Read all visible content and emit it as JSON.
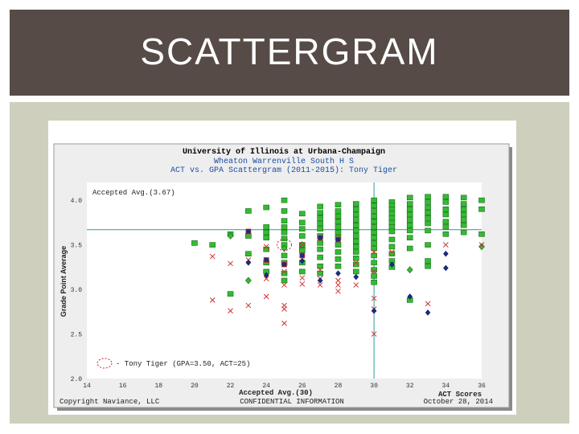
{
  "slide": {
    "title": "SCATTERGRAM"
  },
  "chart_data": {
    "type": "scatter",
    "title": "University of Illinois at Urbana-Champaign",
    "subtitle": "Wheaton Warrenville South H S",
    "subtitle2": "ACT vs. GPA Scattergram (2011-2015): Tony Tiger",
    "xlabel": "Accepted Avg.(30)",
    "xlabel_right": "ACT Scores",
    "ylabel": "Grade Point Average",
    "accepted_gpa_label": "Accepted Avg.(3.67)",
    "legend_text": "- Tony Tiger (GPA=3.50, ACT=25)",
    "footer_left": "Copyright Naviance, LLC",
    "footer_center": "CONFIDENTIAL INFORMATION",
    "footer_right": "October 28, 2014",
    "x_ticks": [
      "14",
      "16",
      "18",
      "20",
      "22",
      "24",
      "26",
      "28",
      "30",
      "32",
      "34",
      "36"
    ],
    "y_ticks": [
      "4.0",
      "3.5",
      "3.0",
      "2.5",
      "2.0"
    ],
    "xlim": [
      14,
      36
    ],
    "ylim": [
      2.0,
      4.2
    ],
    "grid": false,
    "accepted_avg": {
      "act": 30,
      "gpa": 3.67
    },
    "student": {
      "name": "Tony Tiger",
      "act": 25,
      "gpa": 3.5
    },
    "colors": {
      "accepted": "#33bb33",
      "denied": "#cc3333",
      "waitlist": "#1a2a88",
      "title": "#000000",
      "subtitle": "#1a4fa0",
      "ref_line": "#2a9a9a",
      "plot_bg": "#ffffff"
    },
    "series": [
      {
        "marker": "accepted-square",
        "points": [
          [
            20,
            3.52
          ],
          [
            21,
            3.5
          ],
          [
            22,
            3.62
          ],
          [
            22,
            2.95
          ],
          [
            23,
            3.88
          ],
          [
            23,
            3.6
          ],
          [
            23,
            3.4
          ],
          [
            24,
            3.92
          ],
          [
            24,
            3.7
          ],
          [
            24,
            3.64
          ],
          [
            24,
            3.58
          ],
          [
            24,
            3.45
          ],
          [
            24,
            3.3
          ],
          [
            24,
            3.2
          ],
          [
            25,
            4.0
          ],
          [
            25,
            3.88
          ],
          [
            25,
            3.77
          ],
          [
            25,
            3.7
          ],
          [
            25,
            3.64
          ],
          [
            25,
            3.57
          ],
          [
            25,
            3.5
          ],
          [
            25,
            3.38
          ],
          [
            25,
            3.3
          ],
          [
            25,
            3.18
          ],
          [
            25,
            3.1
          ],
          [
            26,
            3.85
          ],
          [
            26,
            3.75
          ],
          [
            26,
            3.68
          ],
          [
            26,
            3.6
          ],
          [
            26,
            3.5
          ],
          [
            26,
            3.44
          ],
          [
            26,
            3.3
          ],
          [
            26,
            3.2
          ],
          [
            27,
            3.93
          ],
          [
            27,
            3.86
          ],
          [
            27,
            3.8
          ],
          [
            27,
            3.74
          ],
          [
            27,
            3.68
          ],
          [
            27,
            3.6
          ],
          [
            27,
            3.52
          ],
          [
            27,
            3.45
          ],
          [
            27,
            3.36
          ],
          [
            27,
            3.26
          ],
          [
            27,
            3.18
          ],
          [
            28,
            3.95
          ],
          [
            28,
            3.88
          ],
          [
            28,
            3.82
          ],
          [
            28,
            3.76
          ],
          [
            28,
            3.7
          ],
          [
            28,
            3.64
          ],
          [
            28,
            3.58
          ],
          [
            28,
            3.5
          ],
          [
            28,
            3.42
          ],
          [
            28,
            3.34
          ],
          [
            28,
            3.26
          ],
          [
            29,
            3.96
          ],
          [
            29,
            3.9
          ],
          [
            29,
            3.84
          ],
          [
            29,
            3.78
          ],
          [
            29,
            3.72
          ],
          [
            29,
            3.66
          ],
          [
            29,
            3.6
          ],
          [
            29,
            3.54
          ],
          [
            29,
            3.48
          ],
          [
            29,
            3.42
          ],
          [
            29,
            3.35
          ],
          [
            29,
            3.28
          ],
          [
            29,
            3.2
          ],
          [
            30,
            4.0
          ],
          [
            30,
            3.94
          ],
          [
            30,
            3.88
          ],
          [
            30,
            3.82
          ],
          [
            30,
            3.76
          ],
          [
            30,
            3.7
          ],
          [
            30,
            3.64
          ],
          [
            30,
            3.58
          ],
          [
            30,
            3.52
          ],
          [
            30,
            3.46
          ],
          [
            30,
            3.38
          ],
          [
            30,
            3.3
          ],
          [
            30,
            3.22
          ],
          [
            30,
            3.15
          ],
          [
            30,
            3.08
          ],
          [
            31,
            3.98
          ],
          [
            31,
            3.94
          ],
          [
            31,
            3.9
          ],
          [
            31,
            3.85
          ],
          [
            31,
            3.8
          ],
          [
            31,
            3.75
          ],
          [
            31,
            3.7
          ],
          [
            31,
            3.65
          ],
          [
            31,
            3.56
          ],
          [
            31,
            3.48
          ],
          [
            31,
            3.4
          ],
          [
            31,
            3.32
          ],
          [
            31,
            3.25
          ],
          [
            32,
            4.03
          ],
          [
            32,
            3.96
          ],
          [
            32,
            3.9
          ],
          [
            32,
            3.84
          ],
          [
            32,
            3.78
          ],
          [
            32,
            3.72
          ],
          [
            32,
            3.66
          ],
          [
            32,
            3.58
          ],
          [
            32,
            3.46
          ],
          [
            32,
            2.88
          ],
          [
            33,
            4.04
          ],
          [
            33,
            3.98
          ],
          [
            33,
            3.92
          ],
          [
            33,
            3.86
          ],
          [
            33,
            3.8
          ],
          [
            33,
            3.74
          ],
          [
            33,
            3.66
          ],
          [
            33,
            3.5
          ],
          [
            33,
            3.32
          ],
          [
            33,
            3.26
          ],
          [
            34,
            4.04
          ],
          [
            34,
            3.98
          ],
          [
            34,
            3.9
          ],
          [
            34,
            3.84
          ],
          [
            34,
            3.76
          ],
          [
            34,
            3.7
          ],
          [
            34,
            3.62
          ],
          [
            35,
            4.03
          ],
          [
            35,
            3.96
          ],
          [
            35,
            3.9
          ],
          [
            35,
            3.84
          ],
          [
            35,
            3.78
          ],
          [
            35,
            3.72
          ],
          [
            35,
            3.64
          ],
          [
            36,
            4.0
          ],
          [
            36,
            3.9
          ],
          [
            36,
            3.62
          ]
        ]
      },
      {
        "marker": "accepted-diamond",
        "points": [
          [
            22,
            3.6
          ],
          [
            23,
            3.1
          ],
          [
            25,
            3.46
          ],
          [
            26,
            3.5
          ],
          [
            32,
            3.22
          ],
          [
            36,
            3.48
          ]
        ]
      },
      {
        "marker": "denied-x",
        "points": [
          [
            21,
            3.37
          ],
          [
            21,
            2.88
          ],
          [
            22,
            3.29
          ],
          [
            22,
            2.76
          ],
          [
            23,
            3.33
          ],
          [
            23,
            2.82
          ],
          [
            24,
            3.48
          ],
          [
            24,
            3.12
          ],
          [
            24,
            2.92
          ],
          [
            25,
            3.2
          ],
          [
            25,
            3.05
          ],
          [
            25,
            2.82
          ],
          [
            25,
            2.78
          ],
          [
            25,
            2.62
          ],
          [
            26,
            3.13
          ],
          [
            26,
            3.06
          ],
          [
            26,
            3.5
          ],
          [
            27,
            3.22
          ],
          [
            27,
            3.12
          ],
          [
            27,
            3.05
          ],
          [
            28,
            3.1
          ],
          [
            28,
            3.05
          ],
          [
            28,
            2.98
          ],
          [
            29,
            3.3
          ],
          [
            29,
            3.05
          ],
          [
            30,
            3.42
          ],
          [
            30,
            3.2
          ],
          [
            30,
            2.9
          ],
          [
            30,
            2.78
          ],
          [
            30,
            2.5
          ],
          [
            31,
            3.42
          ],
          [
            33,
            2.84
          ],
          [
            34,
            3.5
          ],
          [
            36,
            3.5
          ]
        ]
      },
      {
        "marker": "waitlist-diamond",
        "points": [
          [
            23,
            3.3
          ],
          [
            24,
            3.16
          ],
          [
            25,
            3.28
          ],
          [
            26,
            3.32
          ],
          [
            27,
            3.1
          ],
          [
            28,
            3.18
          ],
          [
            29,
            3.14
          ],
          [
            30,
            2.76
          ],
          [
            31,
            3.28
          ],
          [
            32,
            2.92
          ],
          [
            33,
            2.74
          ],
          [
            34,
            3.4
          ],
          [
            34,
            3.24
          ]
        ]
      },
      {
        "marker": "waitlist-square",
        "points": [
          [
            23,
            3.65
          ],
          [
            24,
            3.33
          ],
          [
            25,
            3.28
          ],
          [
            26,
            3.38
          ],
          [
            27,
            3.58
          ],
          [
            28,
            3.56
          ]
        ]
      }
    ]
  }
}
